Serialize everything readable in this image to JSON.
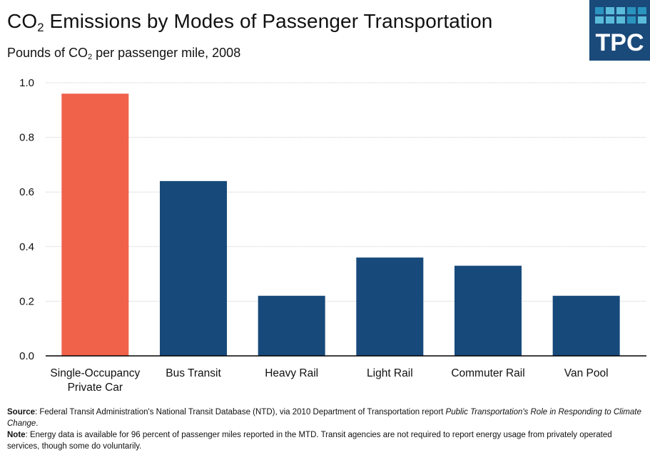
{
  "header": {
    "title_prefix": "CO",
    "title_sub": "2",
    "title_suffix": " Emissions by Modes of Passenger Transportation",
    "subtitle_prefix": "Pounds of CO",
    "subtitle_sub": "2",
    "subtitle_suffix": " per passenger mile, 2008"
  },
  "logo": {
    "text": "TPC",
    "color": "#1a4a7a"
  },
  "colors": {
    "highlight": "#f0624a",
    "default": "#174a7b",
    "grid": "#cccccc",
    "axis": "#000000"
  },
  "chart_data": {
    "type": "bar",
    "title": "CO2 Emissions by Modes of Passenger Transportation",
    "subtitle": "Pounds of CO2 per passenger mile, 2008",
    "xlabel": "",
    "ylabel": "",
    "categories": [
      "Single-Occupancy Private Car",
      "Bus Transit",
      "Heavy Rail",
      "Light Rail",
      "Commuter Rail",
      "Van Pool"
    ],
    "category_lines": [
      [
        "Single-Occupancy",
        "Private Car"
      ],
      [
        "Bus Transit"
      ],
      [
        "Heavy Rail"
      ],
      [
        "Light Rail"
      ],
      [
        "Commuter Rail"
      ],
      [
        "Van Pool"
      ]
    ],
    "values": [
      0.96,
      0.64,
      0.22,
      0.36,
      0.33,
      0.22
    ],
    "highlight_index": 0,
    "ylim": [
      0,
      1.0
    ],
    "yticks": [
      0.0,
      0.2,
      0.4,
      0.6,
      0.8,
      1.0
    ],
    "ytick_labels": [
      "0.0",
      "0.2",
      "0.4",
      "0.6",
      "0.8",
      "1.0"
    ],
    "grid": true,
    "legend": "none"
  },
  "footer": {
    "source_label": "Source",
    "source_text": ": Federal Transit Administration's National Transit Database (NTD), via 2010 Department of Transportation report ",
    "source_italic": "Public Transportation's Role in Responding to Climate Change",
    "source_end": ".",
    "note_label": "Note",
    "note_text": ": Energy data is available for 96 percent of passenger miles reported in the MTD. Transit agencies are not required to report energy usage from privately operated services, though some do voluntarily."
  }
}
